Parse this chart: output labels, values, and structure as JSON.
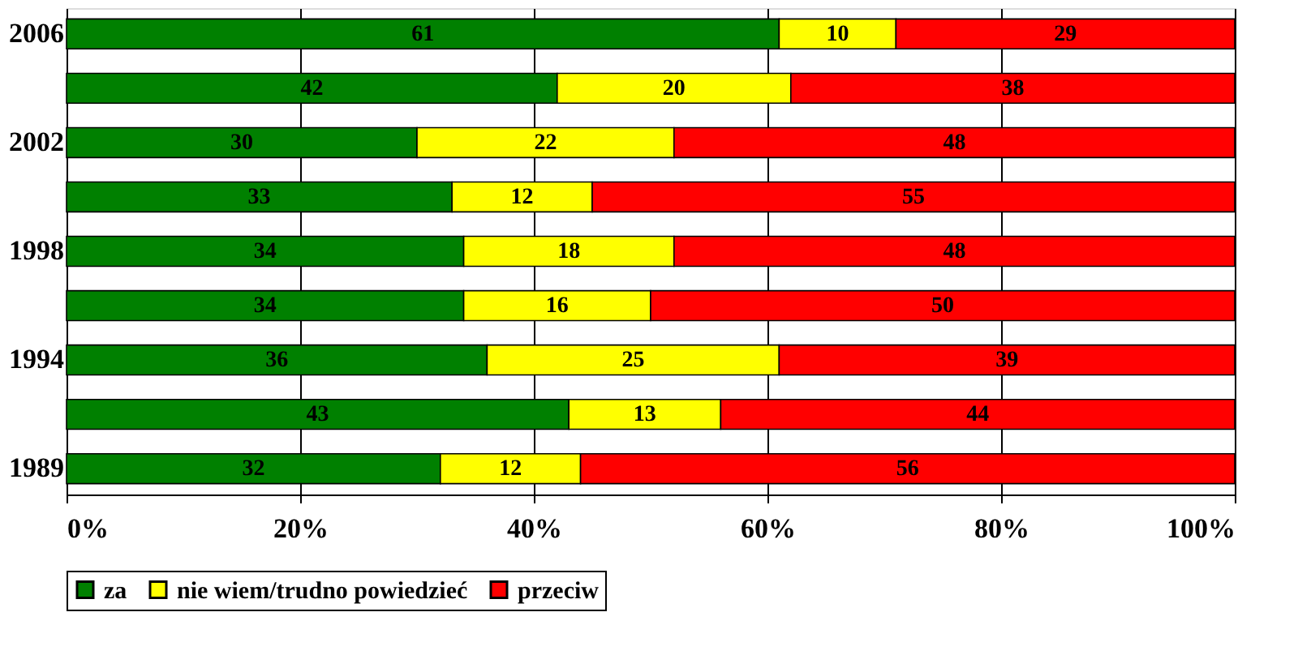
{
  "chart_data": {
    "type": "bar",
    "orientation": "horizontal",
    "stacked": true,
    "data_labels": true,
    "grid": "x",
    "legend": "bottom",
    "categories": [
      "2006",
      null,
      "2002",
      null,
      "1998",
      null,
      "1994",
      null,
      "1989"
    ],
    "xlim": [
      0,
      100
    ],
    "xticks": [
      {
        "value": 0,
        "label": "0%"
      },
      {
        "value": 20,
        "label": "20%"
      },
      {
        "value": 40,
        "label": "40%"
      },
      {
        "value": 60,
        "label": "60%"
      },
      {
        "value": 80,
        "label": "80%"
      },
      {
        "value": 100,
        "label": "100%"
      }
    ],
    "series": [
      {
        "name": "za",
        "color": "#008000",
        "values": [
          61,
          42,
          30,
          33,
          34,
          34,
          36,
          43,
          32
        ]
      },
      {
        "name": "nie wiem/trudno powiedzieć",
        "color": "#ffff00",
        "values": [
          10,
          20,
          22,
          12,
          18,
          16,
          25,
          13,
          12
        ]
      },
      {
        "name": "przeciw",
        "color": "#ff0000",
        "values": [
          29,
          38,
          48,
          55,
          48,
          50,
          39,
          44,
          56
        ]
      }
    ]
  }
}
